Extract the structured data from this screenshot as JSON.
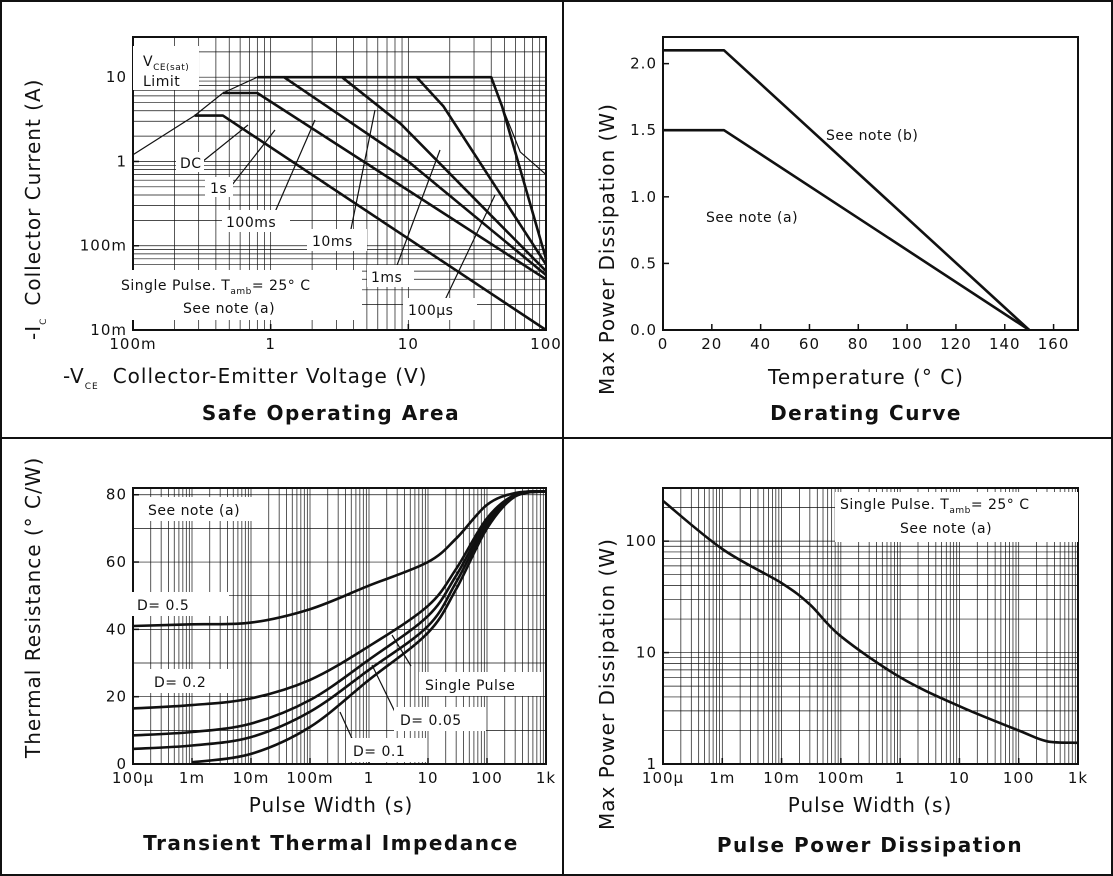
{
  "chart_data": [
    {
      "type": "line",
      "title": "Safe Operating Area",
      "xlabel_prefix": "-V",
      "xlabel_sub": "CE",
      "xlabel": "Collector-Emitter Voltage (V)",
      "ylabel_prefix": "-I",
      "ylabel_sub": "C",
      "ylabel": "Collector Current (A)",
      "x_scale": "log",
      "y_scale": "log",
      "xlim": [
        0.1,
        100
      ],
      "ylim": [
        0.01,
        30
      ],
      "x_ticks": [
        0.1,
        1,
        10,
        100
      ],
      "x_tick_labels": [
        "100m",
        "1",
        "10",
        "100"
      ],
      "y_ticks": [
        0.01,
        0.1,
        1,
        10
      ],
      "y_tick_labels": [
        "10m",
        "100m",
        "1",
        "10"
      ],
      "grid": true,
      "series": [
        {
          "name": "DC",
          "points": [
            [
              0.28,
              3.5
            ],
            [
              0.45,
              3.5
            ],
            [
              100,
              0.009
            ]
          ]
        },
        {
          "name": "1s",
          "points": [
            [
              0.45,
              6.5
            ],
            [
              0.8,
              6.5
            ],
            [
              100,
              0.04
            ]
          ]
        },
        {
          "name": "100ms",
          "points": [
            [
              0.8,
              10
            ],
            [
              1.25,
              10
            ],
            [
              10,
              1
            ],
            [
              100,
              0.045
            ]
          ]
        },
        {
          "name": "10ms",
          "points": [
            [
              1.25,
              10
            ],
            [
              3.3,
              10
            ],
            [
              8.8,
              2.8
            ],
            [
              100,
              0.05
            ]
          ]
        },
        {
          "name": "1ms",
          "points": [
            [
              3.3,
              10
            ],
            [
              11.5,
              10
            ],
            [
              18,
              4.5
            ],
            [
              100,
              0.06
            ]
          ]
        },
        {
          "name": "100µs",
          "points": [
            [
              11.5,
              10
            ],
            [
              40,
              10
            ],
            [
              48,
              4.5
            ],
            [
              100,
              0.07
            ]
          ]
        }
      ],
      "limit_boundary": [
        [
          0.1,
          1.2
        ],
        [
          0.28,
          3.5
        ],
        [
          0.45,
          6.5
        ],
        [
          0.8,
          10
        ],
        [
          40,
          10
        ],
        [
          48,
          4.5
        ],
        [
          65,
          1.3
        ],
        [
          100,
          0.7
        ],
        [
          100,
          0.007
        ]
      ],
      "annotations": {
        "vce_prefix": "V",
        "vce_sub": "CE(sat)",
        "limit": "Limit",
        "dc": "DC",
        "s1": "1s",
        "ms100": "100ms",
        "ms10": "10ms",
        "ms1": "1ms",
        "us100": "100µs",
        "pulse_prefix": "Single Pulse. T",
        "pulse_sub": "amb",
        "pulse_suffix": "= 25° C",
        "note": "See note (a)"
      }
    },
    {
      "type": "line",
      "title": "Derating Curve",
      "xlabel": "Temperature (° C)",
      "ylabel": "Max Power Dissipation (W)",
      "xlim": [
        0,
        170
      ],
      "ylim": [
        0,
        2.2
      ],
      "x_ticks": [
        0,
        20,
        40,
        60,
        80,
        100,
        120,
        140,
        160
      ],
      "x_tick_labels": [
        "0",
        "20",
        "40",
        "60",
        "80",
        "100",
        "120",
        "140",
        "160"
      ],
      "y_ticks": [
        0,
        0.5,
        1.0,
        1.5,
        2.0
      ],
      "y_tick_labels": [
        "0.0",
        "0.5",
        "1.0",
        "1.5",
        "2.0"
      ],
      "grid": false,
      "series": [
        {
          "name": "See note (a)",
          "points": [
            [
              0,
              1.5
            ],
            [
              25,
              1.5
            ],
            [
              150,
              0
            ]
          ]
        },
        {
          "name": "See note (b)",
          "points": [
            [
              0,
              2.1
            ],
            [
              25,
              2.1
            ],
            [
              150,
              0
            ]
          ]
        }
      ]
    },
    {
      "type": "line",
      "title": "Transient Thermal Impedance",
      "xlabel": "Pulse Width (s)",
      "ylabel": "Thermal Resistance (° C/W)",
      "x_scale": "log",
      "xlim": [
        0.0001,
        1000
      ],
      "ylim": [
        0,
        82
      ],
      "x_ticks": [
        0.0001,
        0.001,
        0.01,
        0.1,
        1,
        10,
        100,
        1000
      ],
      "x_tick_labels": [
        "100µ",
        "1m",
        "10m",
        "100m",
        "1",
        "10",
        "100",
        "1k"
      ],
      "y_ticks": [
        0,
        20,
        40,
        60,
        80
      ],
      "y_tick_labels": [
        "0",
        "20",
        "40",
        "60",
        "80"
      ],
      "grid": true,
      "series": [
        {
          "name": "D= 0.5",
          "points": [
            [
              0.0001,
              41
            ],
            [
              0.001,
              41.5
            ],
            [
              0.01,
              42
            ],
            [
              0.1,
              46
            ],
            [
              1,
              53
            ],
            [
              10,
              60
            ],
            [
              30,
              67
            ],
            [
              100,
              77
            ],
            [
              300,
              80.5
            ],
            [
              1000,
              81
            ]
          ]
        },
        {
          "name": "D= 0.2",
          "points": [
            [
              0.0001,
              16.5
            ],
            [
              0.001,
              17.5
            ],
            [
              0.01,
              19.5
            ],
            [
              0.1,
              25
            ],
            [
              1,
              35
            ],
            [
              10,
              47
            ],
            [
              30,
              58
            ],
            [
              100,
              73
            ],
            [
              300,
              80
            ],
            [
              1000,
              81
            ]
          ]
        },
        {
          "name": "D= 0.1",
          "points": [
            [
              0.0001,
              8.5
            ],
            [
              0.001,
              9.5
            ],
            [
              0.01,
              12
            ],
            [
              0.1,
              19
            ],
            [
              1,
              31
            ],
            [
              10,
              44
            ],
            [
              30,
              56
            ],
            [
              100,
              72
            ],
            [
              300,
              80
            ],
            [
              1000,
              81
            ]
          ]
        },
        {
          "name": "D= 0.05",
          "points": [
            [
              0.0001,
              4.5
            ],
            [
              0.001,
              5.5
            ],
            [
              0.01,
              8
            ],
            [
              0.1,
              15.5
            ],
            [
              1,
              28
            ],
            [
              10,
              41
            ],
            [
              30,
              54
            ],
            [
              100,
              71
            ],
            [
              300,
              79.5
            ],
            [
              1000,
              81
            ]
          ]
        },
        {
          "name": "Single Pulse",
          "points": [
            [
              0.001,
              0.5
            ],
            [
              0.01,
              3
            ],
            [
              0.1,
              11
            ],
            [
              1,
              25
            ],
            [
              10,
              39
            ],
            [
              30,
              52
            ],
            [
              100,
              70
            ],
            [
              300,
              79.5
            ],
            [
              1000,
              81
            ]
          ]
        }
      ],
      "annotations": {
        "note": "See note (a)"
      }
    },
    {
      "type": "line",
      "title": "Pulse Power Dissipation",
      "xlabel": "Pulse Width (s)",
      "ylabel": "Max Power Dissipation (W)",
      "x_scale": "log",
      "y_scale": "log",
      "xlim": [
        0.0001,
        1000
      ],
      "ylim": [
        1,
        300
      ],
      "x_ticks": [
        0.0001,
        0.001,
        0.01,
        0.1,
        1,
        10,
        100,
        1000
      ],
      "x_tick_labels": [
        "100µ",
        "1m",
        "10m",
        "100m",
        "1",
        "10",
        "100",
        "1k"
      ],
      "y_ticks": [
        1,
        10,
        100
      ],
      "y_tick_labels": [
        "1",
        "10",
        "100"
      ],
      "grid": true,
      "series": [
        {
          "name": "",
          "points": [
            [
              0.0001,
              230
            ],
            [
              0.001,
              85
            ],
            [
              0.01,
              42
            ],
            [
              0.03,
              27
            ],
            [
              0.1,
              14
            ],
            [
              1,
              6
            ],
            [
              10,
              3.3
            ],
            [
              100,
              2
            ],
            [
              300,
              1.6
            ],
            [
              1000,
              1.55
            ]
          ]
        }
      ],
      "annotations": {
        "pulse_prefix": "Single Pulse. T",
        "pulse_sub": "amb",
        "pulse_suffix": "= 25° C",
        "note": "See note (a)"
      }
    }
  ]
}
